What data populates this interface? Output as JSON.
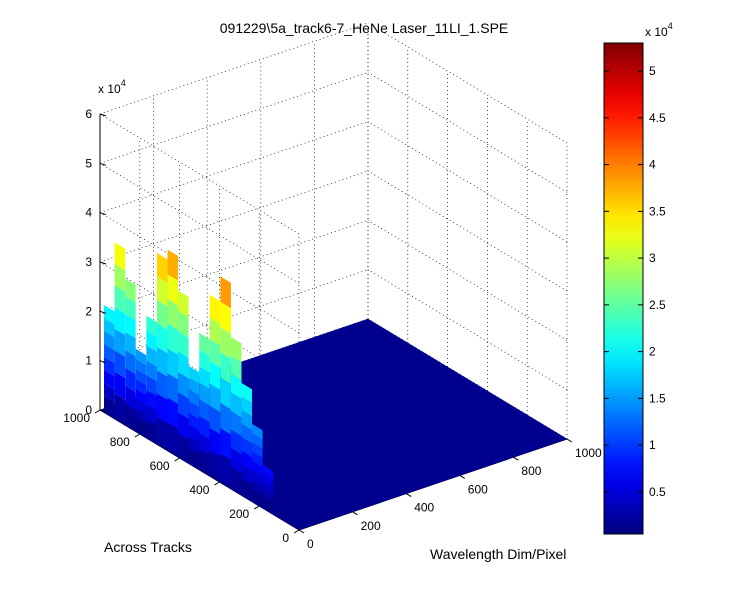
{
  "chart_data": {
    "type": "surface",
    "title": "091229\\5a_track6-7_HeNe Laser_11LI_1.SPE",
    "xlabel": "Wavelength Dim/Pixel",
    "ylabel": "Across Tracks",
    "zlabel": "",
    "x_ticks": [
      "0",
      "200",
      "400",
      "600",
      "800",
      "1000"
    ],
    "y_ticks": [
      "0",
      "200",
      "400",
      "600",
      "800",
      "1000"
    ],
    "z_ticks": [
      "0",
      "1",
      "2",
      "3",
      "4",
      "5",
      "6"
    ],
    "z_exponent_label": "x 10",
    "z_exponent": "4",
    "xlim": [
      0,
      1000
    ],
    "ylim": [
      0,
      1000
    ],
    "zlim": [
      0,
      60000
    ],
    "grid": true,
    "baseline_level": 0,
    "baseline_color": "#00008f",
    "peak": {
      "x_range": [
        0,
        30
      ],
      "y_range": [
        150,
        1000
      ],
      "values": [
        8000,
        15000,
        22000,
        30000,
        41000,
        36000,
        27000,
        19000,
        33000,
        40000,
        38000,
        24000,
        16000,
        29000,
        35000,
        21000
      ]
    },
    "colorbar": {
      "colormap": "jet",
      "clim": [
        500,
        53000
      ],
      "ticks": [
        "0.5",
        "1",
        "1.5",
        "2",
        "2.5",
        "3",
        "3.5",
        "4",
        "4.5",
        "5"
      ],
      "exponent_label": "x 10",
      "exponent": "4"
    }
  }
}
